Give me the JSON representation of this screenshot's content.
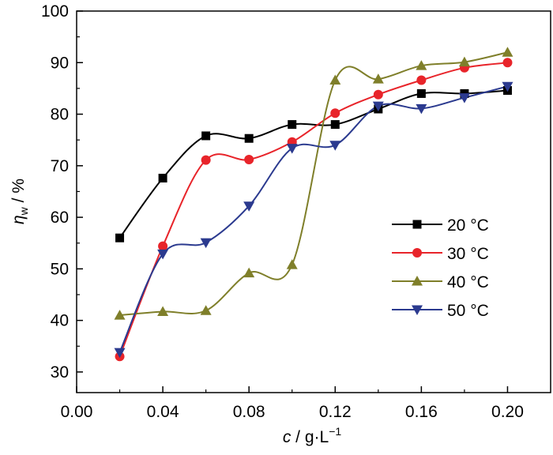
{
  "chart_data": {
    "type": "line",
    "x": [
      0.02,
      0.04,
      0.06,
      0.08,
      0.1,
      0.12,
      0.14,
      0.16,
      0.18,
      0.2
    ],
    "series": [
      {
        "name": "20 °C",
        "color": "#000000",
        "marker": "square",
        "values": [
          56.0,
          67.6,
          75.8,
          75.3,
          78.0,
          78.0,
          81.0,
          84.0,
          84.0,
          84.6
        ]
      },
      {
        "name": "30 °C",
        "color": "#e8242a",
        "marker": "circle",
        "values": [
          33.0,
          54.4,
          71.1,
          71.2,
          74.6,
          80.2,
          83.8,
          86.6,
          89.0,
          90.0
        ]
      },
      {
        "name": "40 °C",
        "color": "#7f7f2a",
        "marker": "triangle-up",
        "values": [
          41.0,
          41.7,
          41.9,
          49.2,
          50.8,
          86.6,
          86.8,
          89.4,
          90.1,
          92.0
        ]
      },
      {
        "name": "50 °C",
        "color": "#2b3a8f",
        "marker": "triangle-down",
        "values": [
          33.8,
          52.9,
          55.1,
          62.2,
          73.4,
          74.0,
          81.6,
          81.1,
          83.2,
          85.4
        ]
      }
    ],
    "xticks": [
      "0.00",
      "0.04",
      "0.08",
      "0.12",
      "0.16",
      "0.20"
    ],
    "yticks": [
      "30",
      "40",
      "50",
      "60",
      "70",
      "80",
      "90",
      "100"
    ],
    "xlim": [
      0.0,
      0.22
    ],
    "ylim": [
      26,
      100
    ],
    "xlabel": {
      "c": "c",
      "rest": " / g·L",
      "sup": "−1"
    },
    "ylabel": {
      "eta": "η",
      "sub": "w",
      "rest": " / %"
    },
    "legend": {
      "position": "center-right"
    }
  }
}
